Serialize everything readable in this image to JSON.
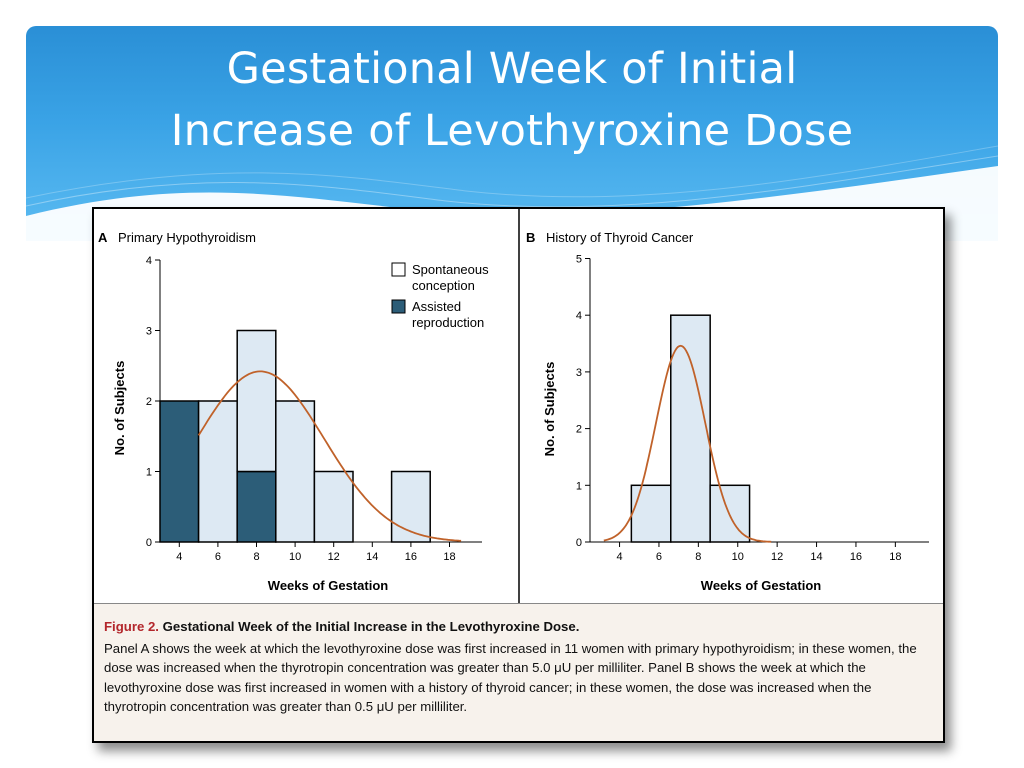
{
  "slide": {
    "title_line1": "Gestational Week of  Initial",
    "title_line2": "Increase of Levothyroxine Dose"
  },
  "colors": {
    "banner": "#3aa3e6",
    "bar_spontaneous": "#dde9f3",
    "bar_assisted": "#2c5d78",
    "curve": "#c0622a",
    "caption_bg": "#f7f2ec",
    "figure_label": "#b3262b"
  },
  "caption": {
    "label": "Figure 2.",
    "heading": "Gestational Week of the Initial Increase in the Levothyroxine Dose.",
    "body": "Panel A shows the week at which the levothyroxine dose was first increased in 11 women with primary hypothyroidism; in these women, the dose was increased when the thyrotropin concentration was greater than 5.0 μU per milliliter. Panel B shows the week at which the levothyroxine dose was first increased in women with a history of thyroid cancer; in these women, the dose was increased when the thyrotropin concentration was greater than 0.5 μU per milliliter."
  },
  "chart_data": [
    {
      "type": "bar",
      "panel": "A",
      "title": "Primary Hypothyroidism",
      "xlabel": "Weeks of Gestation",
      "ylabel": "No. of Subjects",
      "xlim": [
        3,
        19.5
      ],
      "ylim": [
        0,
        4
      ],
      "x_ticks": [
        4,
        6,
        8,
        10,
        12,
        14,
        16,
        18
      ],
      "y_ticks": [
        0,
        1,
        2,
        3,
        4
      ],
      "legend": {
        "position": "top-right",
        "items": [
          {
            "label_line1": "Spontaneous",
            "label_line2": "conception"
          },
          {
            "label_line1": "Assisted",
            "label_line2": "reproduction"
          }
        ]
      },
      "bars": [
        {
          "x0": 3,
          "x1": 5,
          "assisted": 2,
          "spontaneous": 0
        },
        {
          "x0": 5,
          "x1": 7,
          "assisted": 0,
          "spontaneous": 2
        },
        {
          "x0": 7,
          "x1": 9,
          "assisted": 1,
          "spontaneous": 2
        },
        {
          "x0": 9,
          "x1": 11,
          "assisted": 0,
          "spontaneous": 2
        },
        {
          "x0": 11,
          "x1": 13,
          "assisted": 0,
          "spontaneous": 1
        },
        {
          "x0": 15,
          "x1": 17,
          "assisted": 0,
          "spontaneous": 1
        }
      ],
      "curve": {
        "mean": 8.2,
        "sd": 3.3,
        "peak": 2.42,
        "x_start": 5,
        "x_end": 18.6
      }
    },
    {
      "type": "bar",
      "panel": "B",
      "title": "History of Thyroid Cancer",
      "xlabel": "Weeks of Gestation",
      "ylabel": "No. of Subjects",
      "xlim": [
        2.5,
        19.5
      ],
      "ylim": [
        0,
        5
      ],
      "x_ticks": [
        4,
        6,
        8,
        10,
        12,
        14,
        16,
        18
      ],
      "y_ticks": [
        0,
        1,
        2,
        3,
        4,
        5
      ],
      "bars": [
        {
          "x0": 4.6,
          "x1": 6.6,
          "spontaneous": 1
        },
        {
          "x0": 6.6,
          "x1": 8.6,
          "spontaneous": 4
        },
        {
          "x0": 8.6,
          "x1": 10.6,
          "spontaneous": 1
        }
      ],
      "curve": {
        "mean": 7.1,
        "sd": 1.25,
        "peak": 3.46,
        "x_start": 3.2,
        "x_end": 11.7
      }
    }
  ]
}
